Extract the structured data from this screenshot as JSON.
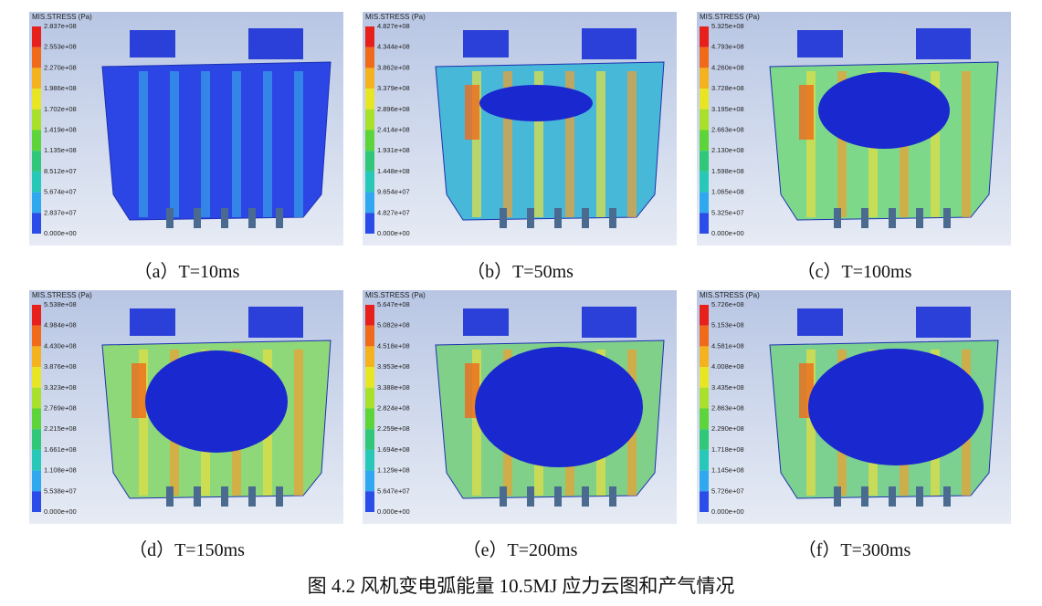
{
  "figure": {
    "panels": [
      {
        "label": "（a）T=10ms",
        "legend_title": "MIS.STRESS (Pa)",
        "legend": [
          "2.837e+08",
          "2.553e+08",
          "2.270e+08",
          "1.986e+08",
          "1.702e+08",
          "1.419e+08",
          "1.135e+08",
          "8.512e+07",
          "5.674e+07",
          "2.837e+07",
          "0.000e+00"
        ]
      },
      {
        "label": "（b）T=50ms",
        "legend_title": "MIS.STRESS (Pa)",
        "legend": [
          "4.827e+08",
          "4.344e+08",
          "3.862e+08",
          "3.379e+08",
          "2.896e+08",
          "2.414e+08",
          "1.931e+08",
          "1.448e+08",
          "9.654e+07",
          "4.827e+07",
          "0.000e+00"
        ]
      },
      {
        "label": "（c）T=100ms",
        "legend_title": "MIS.STRESS (Pa)",
        "legend": [
          "5.325e+08",
          "4.793e+08",
          "4.260e+08",
          "3.728e+08",
          "3.195e+08",
          "2.663e+08",
          "2.130e+08",
          "1.598e+08",
          "1.065e+08",
          "5.325e+07",
          "0.000e+00"
        ]
      },
      {
        "label": "（d）T=150ms",
        "legend_title": "MIS.STRESS (Pa)",
        "legend": [
          "5.538e+08",
          "4.984e+08",
          "4.430e+08",
          "3.876e+08",
          "3.323e+08",
          "2.769e+08",
          "2.215e+08",
          "1.661e+08",
          "1.108e+08",
          "5.538e+07",
          "0.000e+00"
        ]
      },
      {
        "label": "（e）T=200ms",
        "legend_title": "MIS.STRESS (Pa)",
        "legend": [
          "5.647e+08",
          "5.082e+08",
          "4.518e+08",
          "3.953e+08",
          "3.388e+08",
          "2.824e+08",
          "2.259e+08",
          "1.694e+08",
          "1.129e+08",
          "5.647e+07",
          "0.000e+00"
        ]
      },
      {
        "label": "（f）T=300ms",
        "legend_title": "MIS.STRESS (Pa)",
        "legend": [
          "5.726e+08",
          "5.153e+08",
          "4.581e+08",
          "4.008e+08",
          "3.435e+08",
          "2.863e+08",
          "2.290e+08",
          "1.718e+08",
          "1.145e+08",
          "5.726e+07",
          "0.000e+00"
        ]
      }
    ],
    "caption": "图 4.2 风机变电弧能量 10.5MJ 应力云图和产气情况"
  }
}
